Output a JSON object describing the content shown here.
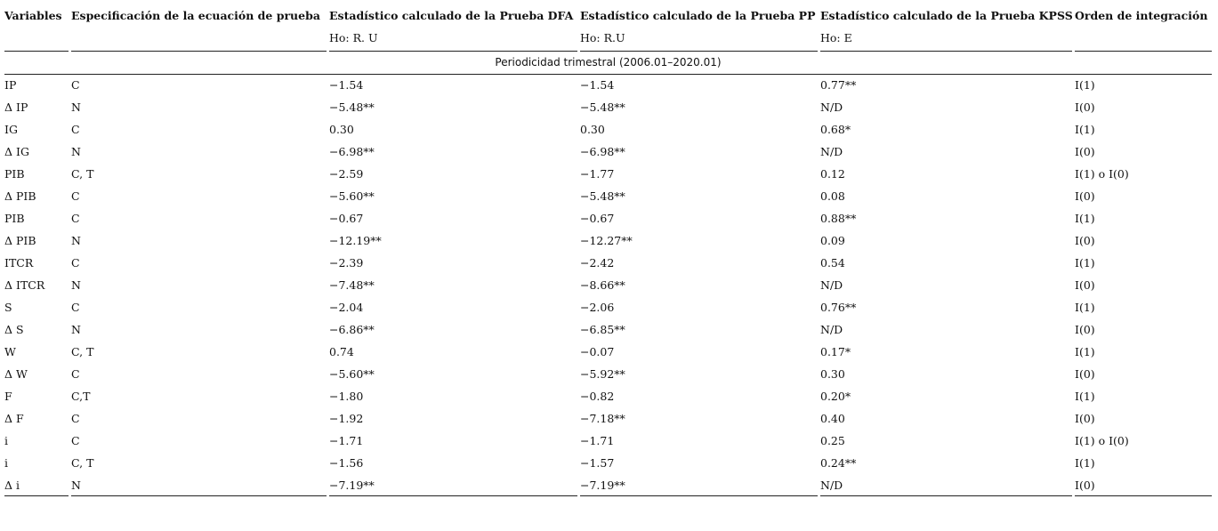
{
  "table": {
    "header": [
      "Variables",
      "Especificación de la ecuación de prueba",
      "Estadístico calculado de la Prueba DFA",
      "Estadístico calculado de la Prueba PP",
      "Estadístico calculado de la Prueba KPSS",
      "Orden de integración"
    ],
    "subheader": [
      "Ho: R. U",
      "Ho: R.U",
      "Ho: E"
    ],
    "period": "Periodicidad trimestral (2006.01–2020.01)",
    "rows": [
      [
        "IP",
        "C",
        "−1.54",
        "−1.54",
        "0.77**",
        "I(1)"
      ],
      [
        "Δ IP",
        "N",
        "−5.48**",
        "−5.48**",
        "N/D",
        "I(0)"
      ],
      [
        "IG",
        "C",
        "0.30",
        "0.30",
        "0.68*",
        "I(1)"
      ],
      [
        "Δ IG",
        "N",
        "−6.98**",
        "−6.98**",
        "N/D",
        "I(0)"
      ],
      [
        "PIB",
        "C, T",
        "−2.59",
        "−1.77",
        "0.12",
        "I(1) o I(0)"
      ],
      [
        "Δ PIB",
        "C",
        "−5.60**",
        "−5.48**",
        "0.08",
        "I(0)"
      ],
      [
        "PIB",
        "C",
        "−0.67",
        "−0.67",
        "0.88**",
        "I(1)"
      ],
      [
        "Δ PIB",
        "N",
        "−12.19**",
        "−12.27**",
        "0.09",
        "I(0)"
      ],
      [
        "ITCR",
        "C",
        "−2.39",
        "−2.42",
        "0.54",
        "I(1)"
      ],
      [
        "Δ ITCR",
        "N",
        "−7.48**",
        "−8.66**",
        "N/D",
        "I(0)"
      ],
      [
        "S",
        "C",
        "−2.04",
        "−2.06",
        "0.76**",
        "I(1)"
      ],
      [
        "Δ S",
        "N",
        "−6.86**",
        "−6.85**",
        "N/D",
        "I(0)"
      ],
      [
        "W",
        "C, T",
        "0.74",
        "−0.07",
        "0.17*",
        "I(1)"
      ],
      [
        "Δ W",
        "C",
        "−5.60**",
        "−5.92**",
        "0.30",
        "I(0)"
      ],
      [
        "F",
        "C,T",
        "−1.80",
        "−0.82",
        "0.20*",
        "I(1)"
      ],
      [
        "Δ F",
        "C",
        "−1.92",
        "−7.18**",
        "0.40",
        "I(0)"
      ],
      [
        "i",
        "C",
        "−1.71",
        "−1.71",
        "0.25",
        "I(1) o I(0)"
      ],
      [
        "i",
        "C, T",
        "−1.56",
        "−1.57",
        "0.24**",
        "I(1)"
      ],
      [
        "Δ i",
        "N",
        "−7.19**",
        "−7.19**",
        "N/D",
        "I(0)"
      ]
    ]
  }
}
